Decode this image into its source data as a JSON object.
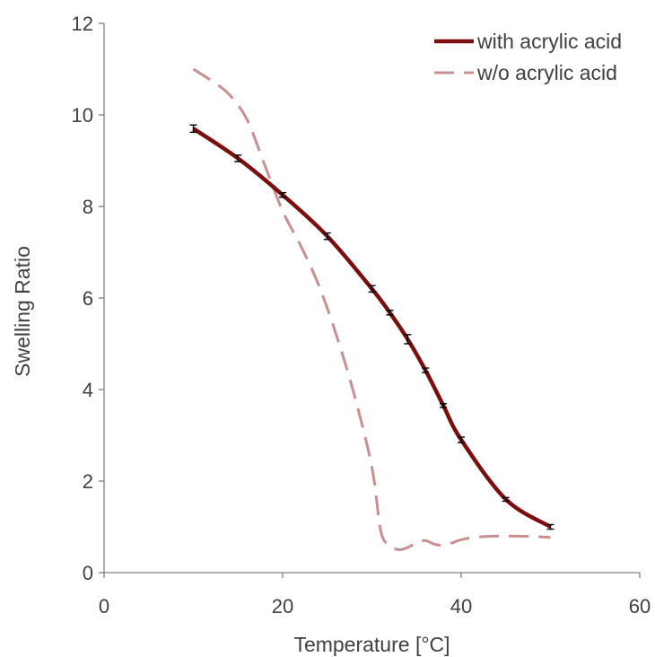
{
  "chart_data": {
    "type": "line",
    "xlabel": "Temperature [°C]",
    "ylabel": "Swelling Ratio",
    "xlim": [
      0,
      60
    ],
    "ylim": [
      0,
      12
    ],
    "x_ticks": [
      0,
      20,
      40,
      60
    ],
    "y_ticks": [
      0,
      2,
      4,
      6,
      8,
      10,
      12
    ],
    "grid": false,
    "legend": "top-right",
    "series": [
      {
        "name": "with acrylic acid",
        "color": "#7b0e0e",
        "style": "solid",
        "error_bars": true,
        "x": [
          10,
          15,
          20,
          25,
          30,
          32,
          34,
          36,
          38,
          40,
          45,
          50
        ],
        "y": [
          9.7,
          9.05,
          8.25,
          7.35,
          6.2,
          5.68,
          5.1,
          4.42,
          3.65,
          2.9,
          1.6,
          1.0
        ],
        "err": [
          0.08,
          0.07,
          0.05,
          0.07,
          0.07,
          0.05,
          0.1,
          0.05,
          0.04,
          0.06,
          0.04,
          0.05
        ]
      },
      {
        "name": "w/o acrylic acid",
        "color": "#c99090",
        "style": "dashed",
        "error_bars": false,
        "x": [
          10,
          12,
          14,
          16,
          18,
          20,
          22,
          24,
          26,
          28,
          30,
          31,
          32,
          33,
          34,
          35,
          36,
          37,
          38,
          39,
          40,
          42,
          45,
          48,
          50
        ],
        "y": [
          11.0,
          10.75,
          10.45,
          9.9,
          8.9,
          7.9,
          7.15,
          6.3,
          5.2,
          3.9,
          2.3,
          0.9,
          0.6,
          0.5,
          0.55,
          0.65,
          0.7,
          0.62,
          0.6,
          0.65,
          0.72,
          0.78,
          0.8,
          0.79,
          0.77
        ]
      }
    ]
  }
}
